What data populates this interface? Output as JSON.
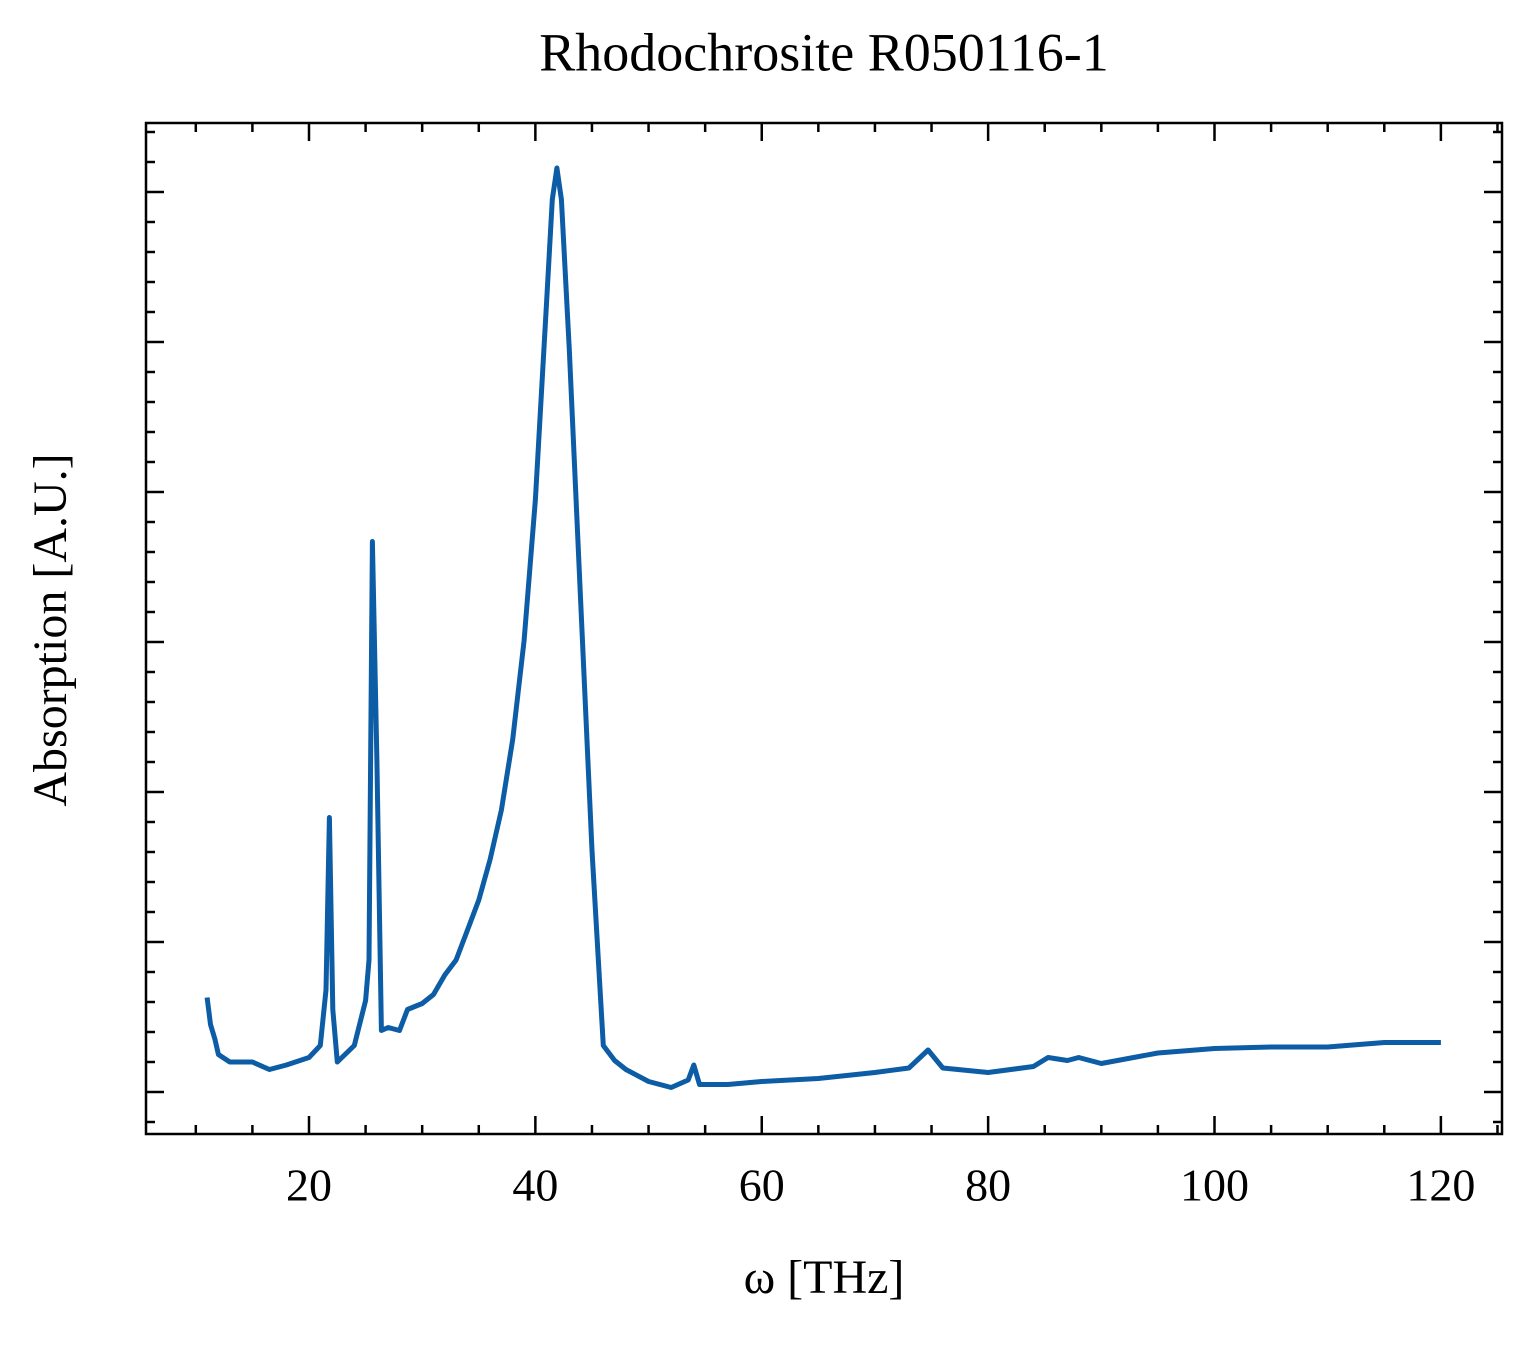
{
  "chart_data": {
    "type": "line",
    "title": "Rhodochrosite R050116-1",
    "x_label": "ω [THz]",
    "y_label": "Absorption [A.U.]",
    "x": [
      11,
      11.3,
      11.7,
      12,
      13,
      15,
      16.5,
      18,
      20,
      21,
      21.5,
      21.8,
      22.1,
      22.5,
      24,
      25,
      25.3,
      25.6,
      26,
      26.4,
      27,
      28,
      28.7,
      30,
      31,
      32,
      33,
      34,
      35,
      36,
      37,
      38,
      39,
      40,
      41,
      41.5,
      41.9,
      42.3,
      43,
      44,
      45,
      46,
      47,
      48,
      50,
      52,
      53.5,
      54,
      54.5,
      57,
      60,
      65,
      70,
      73,
      74.7,
      76,
      80,
      84,
      85.3,
      87,
      88,
      90,
      95,
      100,
      105,
      110,
      115,
      120
    ],
    "values": [
      0.63,
      0.45,
      0.35,
      0.25,
      0.2,
      0.2,
      0.15,
      0.18,
      0.23,
      0.31,
      0.68,
      1.83,
      0.55,
      0.2,
      0.31,
      0.61,
      0.88,
      3.67,
      2.21,
      0.41,
      0.43,
      0.41,
      0.55,
      0.59,
      0.65,
      0.78,
      0.88,
      1.08,
      1.28,
      1.55,
      1.88,
      2.35,
      3.01,
      3.95,
      5.28,
      5.95,
      6.16,
      5.95,
      4.95,
      3.28,
      1.61,
      0.31,
      0.21,
      0.15,
      0.07,
      0.03,
      0.08,
      0.18,
      0.05,
      0.05,
      0.07,
      0.09,
      0.13,
      0.16,
      0.28,
      0.16,
      0.13,
      0.17,
      0.23,
      0.21,
      0.23,
      0.19,
      0.26,
      0.29,
      0.3,
      0.3,
      0.33,
      0.33
    ],
    "color": "#0C5DA5",
    "xlim": [
      5.6,
      125.4
    ],
    "xticks": [
      20,
      40,
      60,
      80,
      100,
      120
    ],
    "ylim": [
      -0.28,
      6.46
    ],
    "yticks": [
      0,
      1,
      2,
      3,
      4,
      5,
      6
    ],
    "grid": false
  }
}
